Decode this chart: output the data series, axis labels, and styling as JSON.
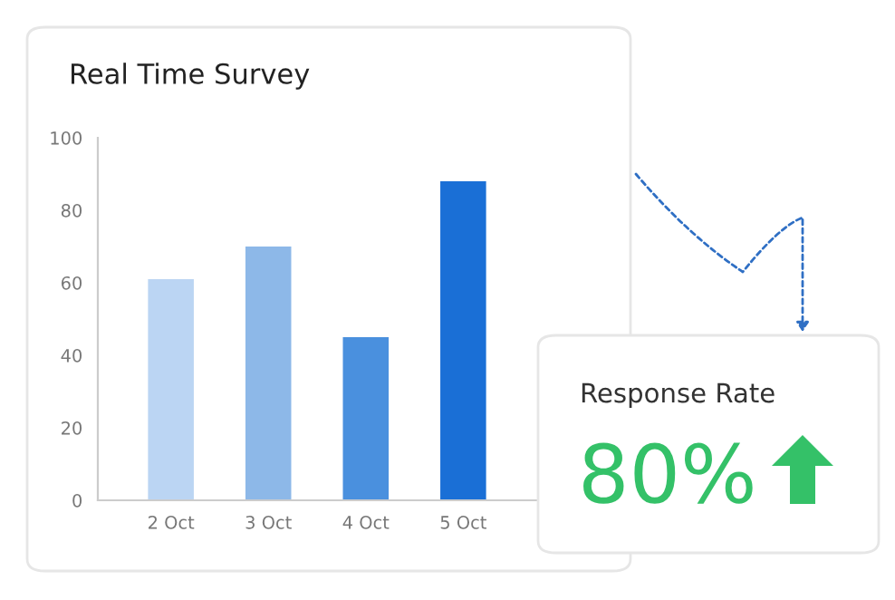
{
  "chart_data": [
    {
      "type": "bar",
      "title": "Real Time Survey",
      "categories": [
        "2 Oct",
        "3 Oct",
        "4 Oct",
        "5 Oct"
      ],
      "values": [
        61,
        70,
        45,
        88
      ],
      "colors": [
        "#bbd5f3",
        "#8db8e8",
        "#4a90de",
        "#1a6fd6"
      ],
      "ylim": [
        0,
        100
      ],
      "yticks": [
        0,
        20,
        40,
        60,
        80,
        100
      ],
      "grid": false
    },
    {
      "type": "other",
      "title": "Response Rate",
      "annotations": [
        "80%"
      ]
    }
  ]
}
